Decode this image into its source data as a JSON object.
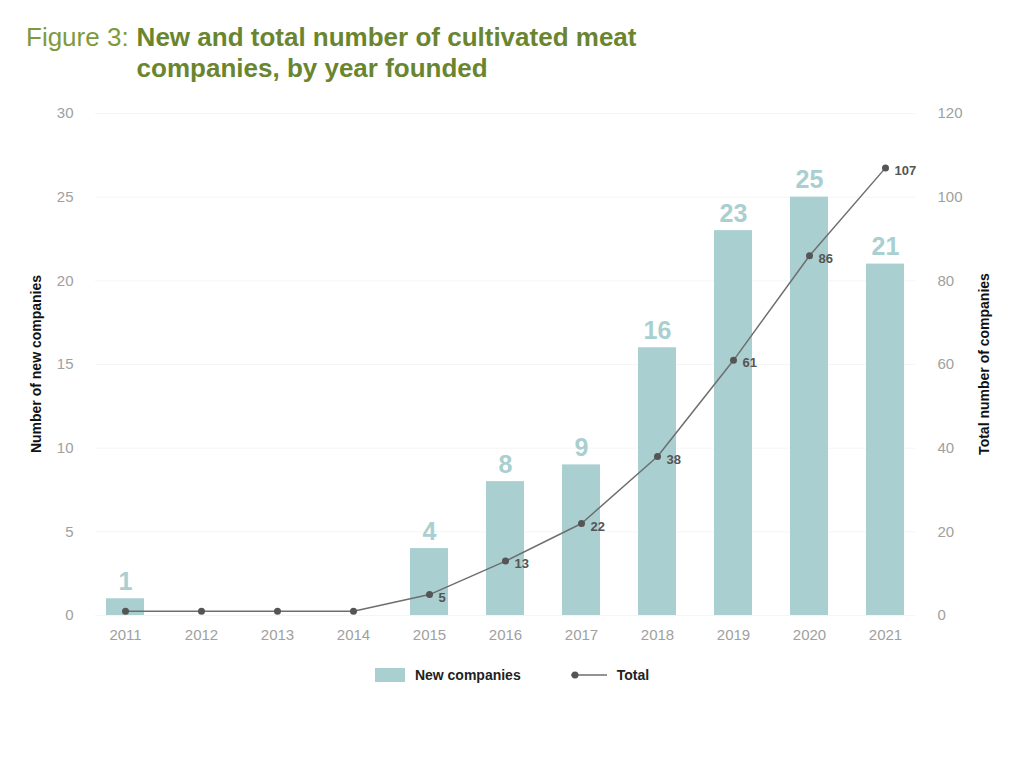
{
  "chart_data": {
    "type": "bar",
    "title": "Figure 3: New and total number of cultivated meat companies, by year founded",
    "categories": [
      "2011",
      "2012",
      "2013",
      "2014",
      "2015",
      "2016",
      "2017",
      "2018",
      "2019",
      "2020",
      "2021"
    ],
    "series": [
      {
        "name": "New companies",
        "type": "bar",
        "color": "#a9cfd0",
        "values": [
          1,
          0,
          0,
          0,
          4,
          8,
          9,
          16,
          23,
          25,
          21
        ],
        "value_labels": [
          "1",
          null,
          null,
          null,
          "4",
          "8",
          "9",
          "16",
          "23",
          "25",
          "21"
        ]
      },
      {
        "name": "Total",
        "type": "line",
        "axis": "y2",
        "color": "#6e6e6e",
        "marker": "circle",
        "values": [
          1,
          1,
          1,
          1,
          5,
          13,
          22,
          38,
          61,
          86,
          107
        ],
        "value_labels": [
          null,
          null,
          null,
          null,
          "5",
          "13",
          "22",
          "38",
          "61",
          "86",
          "107"
        ]
      }
    ],
    "ylabel": "Number of new companies",
    "y2label": "Total number of companies",
    "ylim": [
      0,
      30
    ],
    "yticks": [
      0,
      5,
      10,
      15,
      20,
      25,
      30
    ],
    "y2lim": [
      0,
      120
    ],
    "y2ticks": [
      0,
      20,
      40,
      60,
      80,
      100,
      120
    ],
    "grid": true,
    "legend": "bottom",
    "data_labels": true
  }
}
